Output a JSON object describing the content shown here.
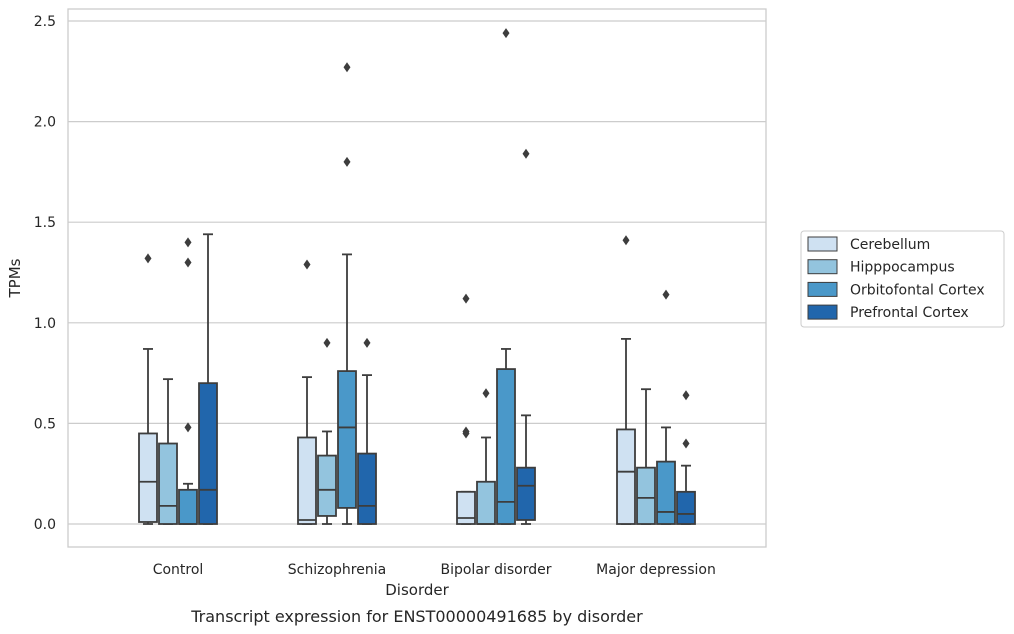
{
  "chart_data": {
    "type": "box",
    "caption": "Transcript expression for ENST00000491685 by disorder",
    "xlabel": "Disorder",
    "ylabel": "TPMs",
    "ylim": [
      -0.12,
      2.56
    ],
    "yticks": [
      0.0,
      0.5,
      1.0,
      1.5,
      2.0,
      2.5
    ],
    "ytick_labels": [
      "0.0",
      "0.5",
      "1.0",
      "1.5",
      "2.0",
      "2.5"
    ],
    "grid": "horizontal",
    "legend_position": "right",
    "categories": [
      "Control",
      "Schizophrenia",
      "Bipolar disorder",
      "Major depression"
    ],
    "series": [
      {
        "name": "Cerebellum",
        "color": "#cfe1f2",
        "boxes": [
          {
            "whislo": 0.0,
            "q1": 0.01,
            "med": 0.21,
            "q3": 0.45,
            "whishi": 0.87,
            "fliers": [
              1.32
            ]
          },
          {
            "whislo": 0.0,
            "q1": 0.0,
            "med": 0.02,
            "q3": 0.43,
            "whishi": 0.73,
            "fliers": [
              1.29
            ]
          },
          {
            "whislo": 0.0,
            "q1": 0.0,
            "med": 0.03,
            "q3": 0.16,
            "whishi": 0.16,
            "fliers": [
              0.45,
              0.46,
              1.12
            ]
          },
          {
            "whislo": 0.0,
            "q1": 0.0,
            "med": 0.26,
            "q3": 0.47,
            "whishi": 0.92,
            "fliers": [
              1.41
            ]
          }
        ]
      },
      {
        "name": "Hipppocampus",
        "color": "#93c4de",
        "boxes": [
          {
            "whislo": 0.0,
            "q1": 0.0,
            "med": 0.09,
            "q3": 0.4,
            "whishi": 0.72,
            "fliers": []
          },
          {
            "whislo": 0.0,
            "q1": 0.04,
            "med": 0.17,
            "q3": 0.34,
            "whishi": 0.46,
            "fliers": [
              0.9
            ]
          },
          {
            "whislo": 0.0,
            "q1": 0.0,
            "med": 0.0,
            "q3": 0.21,
            "whishi": 0.43,
            "fliers": [
              0.65
            ]
          },
          {
            "whislo": 0.0,
            "q1": 0.0,
            "med": 0.13,
            "q3": 0.28,
            "whishi": 0.67,
            "fliers": []
          }
        ]
      },
      {
        "name": "Orbitofontal Cortex",
        "color": "#4a98c9",
        "boxes": [
          {
            "whislo": 0.0,
            "q1": 0.0,
            "med": 0.0,
            "q3": 0.17,
            "whishi": 0.2,
            "fliers": [
              0.48,
              1.3,
              1.4
            ]
          },
          {
            "whislo": 0.0,
            "q1": 0.08,
            "med": 0.48,
            "q3": 0.76,
            "whishi": 1.34,
            "fliers": [
              1.8,
              2.27
            ]
          },
          {
            "whislo": 0.0,
            "q1": 0.0,
            "med": 0.11,
            "q3": 0.77,
            "whishi": 0.87,
            "fliers": [
              2.44
            ]
          },
          {
            "whislo": 0.0,
            "q1": 0.0,
            "med": 0.06,
            "q3": 0.31,
            "whishi": 0.48,
            "fliers": [
              1.14
            ]
          }
        ]
      },
      {
        "name": "Prefrontal Cortex",
        "color": "#2166ac",
        "boxes": [
          {
            "whislo": 0.0,
            "q1": 0.0,
            "med": 0.17,
            "q3": 0.7,
            "whishi": 1.44,
            "fliers": []
          },
          {
            "whislo": 0.0,
            "q1": 0.0,
            "med": 0.09,
            "q3": 0.35,
            "whishi": 0.74,
            "fliers": [
              0.9
            ]
          },
          {
            "whislo": 0.0,
            "q1": 0.02,
            "med": 0.19,
            "q3": 0.28,
            "whishi": 0.54,
            "fliers": [
              1.84
            ]
          },
          {
            "whislo": 0.0,
            "q1": 0.0,
            "med": 0.05,
            "q3": 0.16,
            "whishi": 0.29,
            "fliers": [
              0.4,
              0.64
            ]
          }
        ]
      }
    ]
  }
}
